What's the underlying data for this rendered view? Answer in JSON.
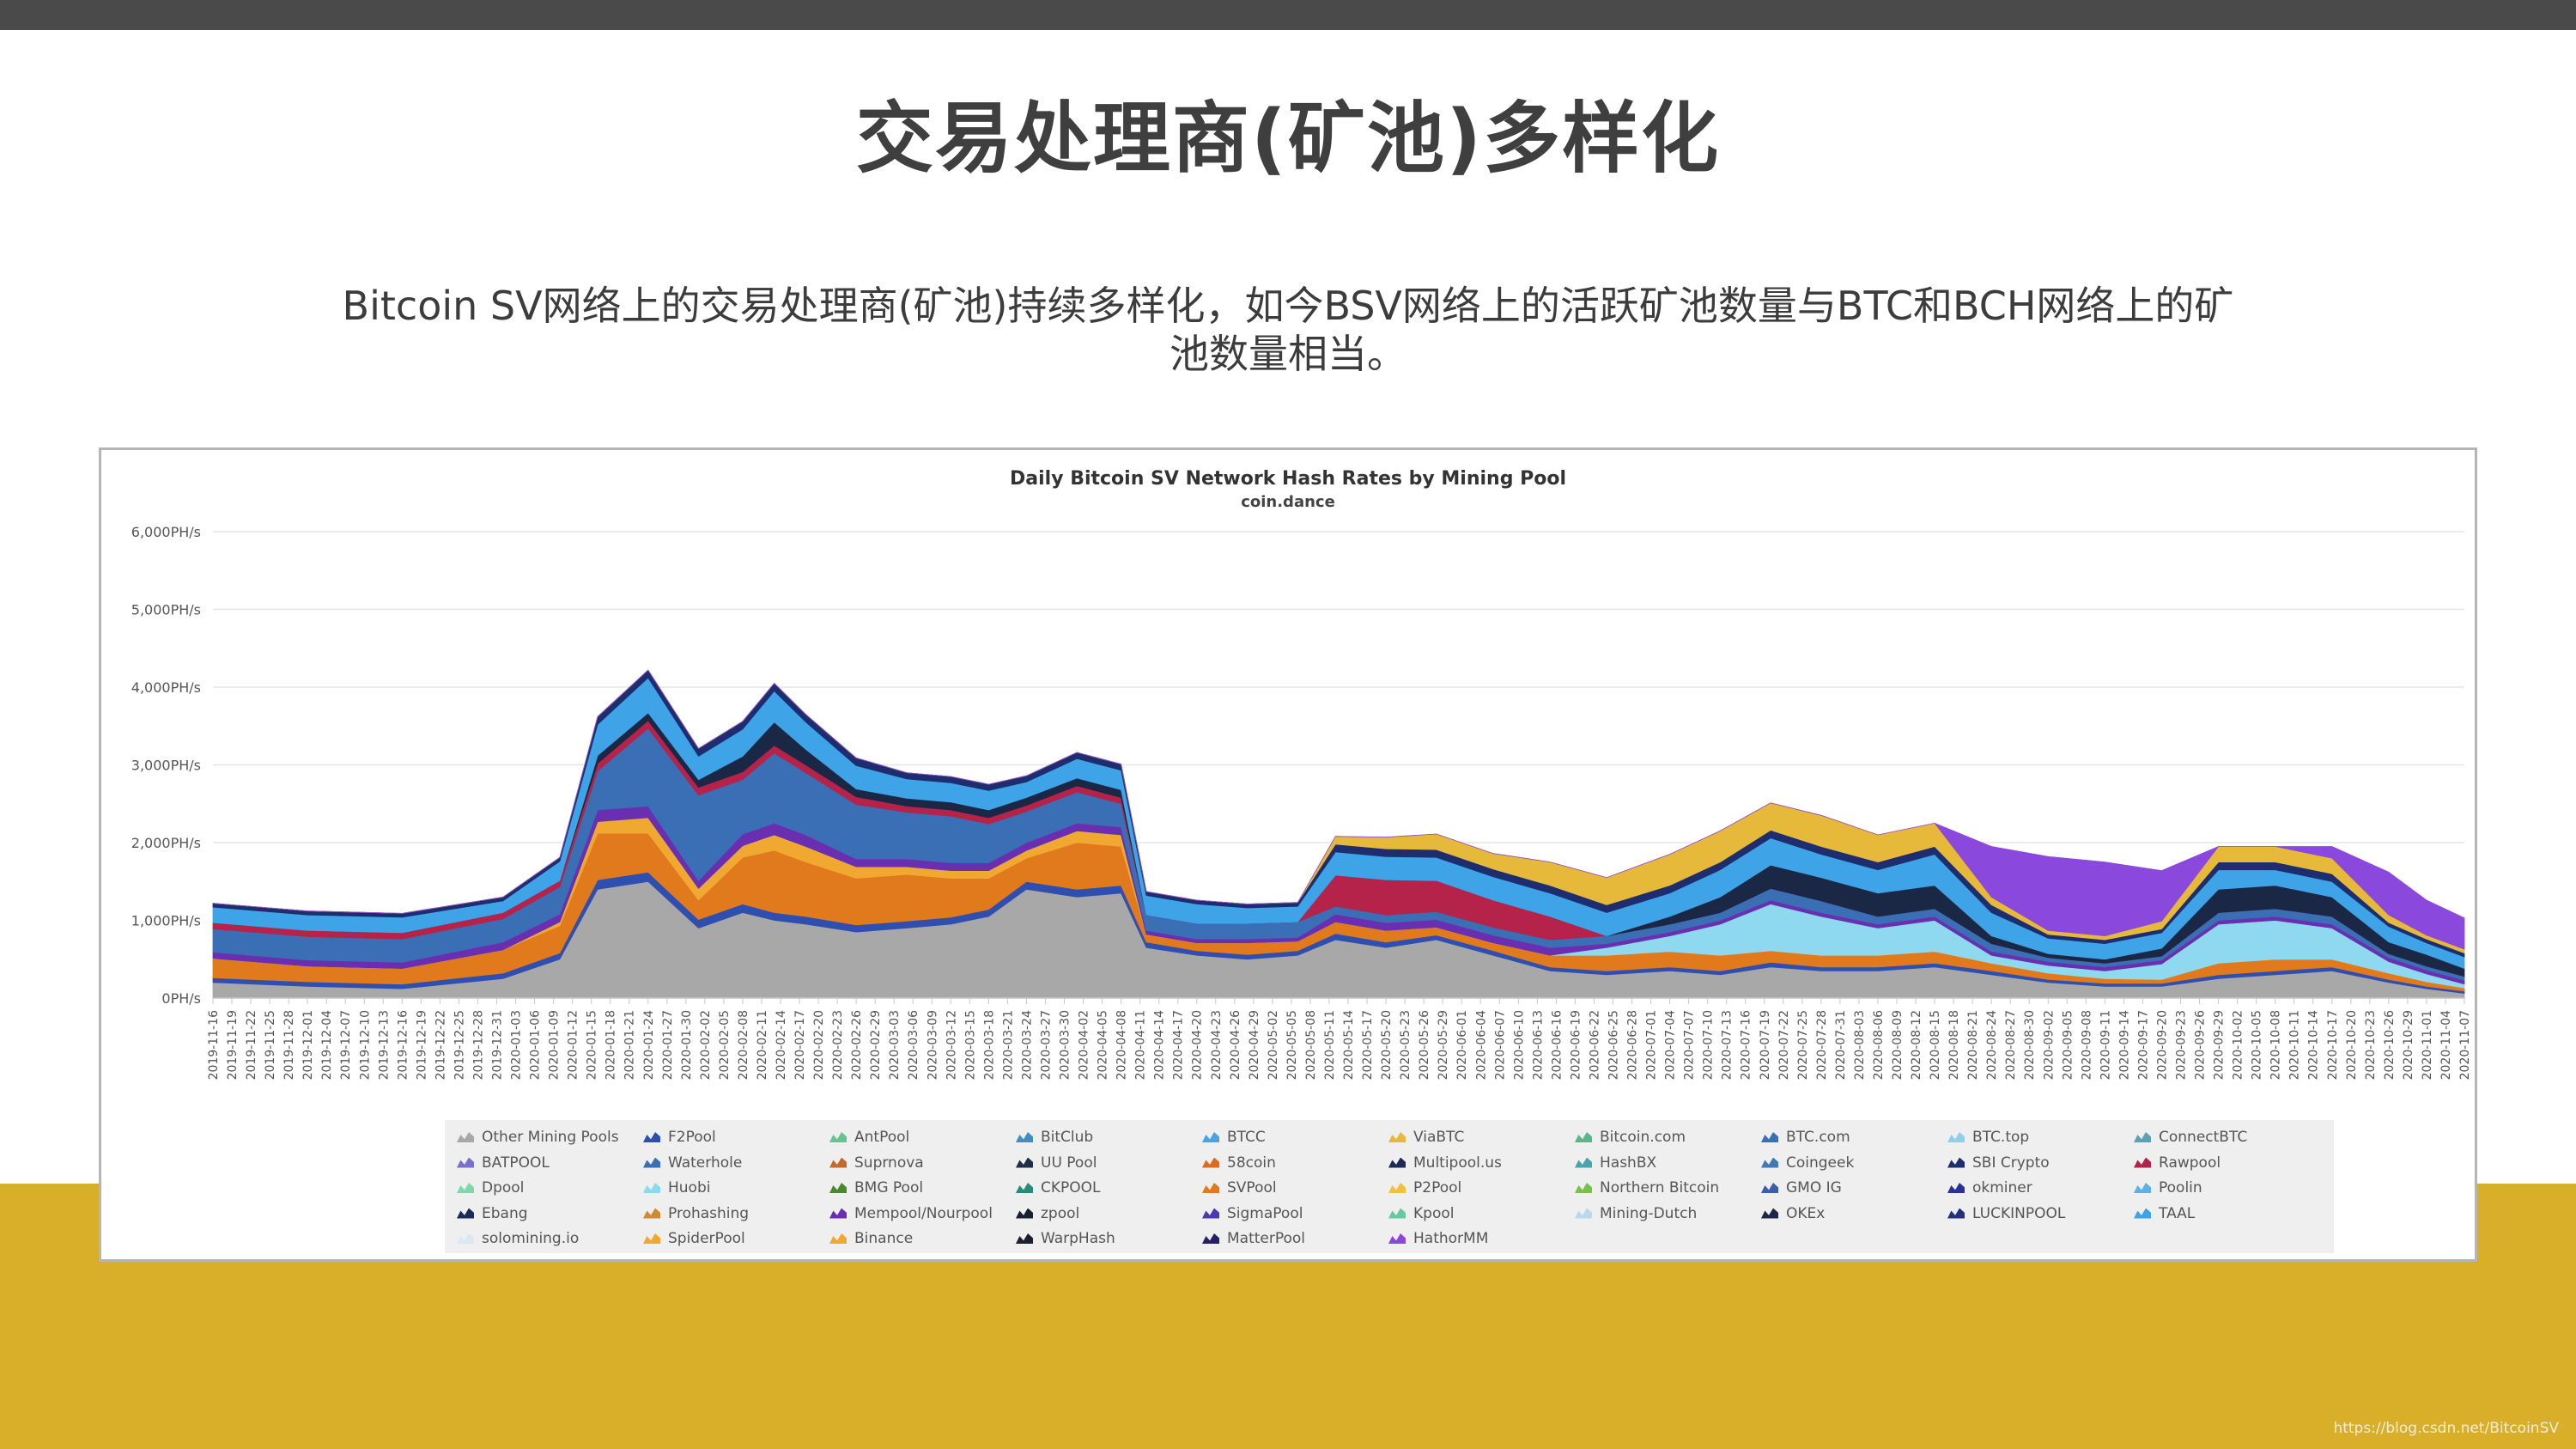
{
  "slide": {
    "title": "交易处理商(矿池)多样化",
    "description": "Bitcoin SV网络上的交易处理商(矿池)持续多样化，如今BSV网络上的活跃矿池数量与BTC和BCH网络上的矿池数量相当。",
    "watermark": "https://blog.csdn.net/BitcoinSV"
  },
  "colors": {
    "top_bar": "#4a4a4a",
    "bottom_band": "#d9af2a"
  },
  "chart_data": {
    "type": "area",
    "stacked": true,
    "title": "Daily Bitcoin SV Network Hash Rates by Mining Pool",
    "subtitle": "coin.dance",
    "y_unit": "PH/s",
    "ylim": [
      0,
      6000
    ],
    "y_ticks": [
      "0PH/s",
      "1,000PH/s",
      "2,000PH/s",
      "3,000PH/s",
      "4,000PH/s",
      "5,000PH/s",
      "6,000PH/s"
    ],
    "x_range": [
      "2019-11-16",
      "2020-11-07"
    ],
    "x_tick_labels": [
      "2019-11-16",
      "2019-11-19",
      "2019-11-22",
      "2019-11-25",
      "2019-11-28",
      "2019-12-01",
      "2019-12-04",
      "2019-12-07",
      "2019-12-10",
      "2019-12-13",
      "2019-12-16",
      "2019-12-19",
      "2019-12-22",
      "2019-12-25",
      "2019-12-28",
      "2019-12-31",
      "2020-01-03",
      "2020-01-06",
      "2020-01-09",
      "2020-01-12",
      "2020-01-15",
      "2020-01-18",
      "2020-01-21",
      "2020-01-24",
      "2020-01-27",
      "2020-01-30",
      "2020-02-02",
      "2020-02-05",
      "2020-02-08",
      "2020-02-11",
      "2020-02-14",
      "2020-02-17",
      "2020-02-20",
      "2020-02-23",
      "2020-02-26",
      "2020-02-29",
      "2020-03-03",
      "2020-03-06",
      "2020-03-09",
      "2020-03-12",
      "2020-03-15",
      "2020-03-18",
      "2020-03-21",
      "2020-03-24",
      "2020-03-27",
      "2020-03-30",
      "2020-04-02",
      "2020-04-05",
      "2020-04-08",
      "2020-04-11",
      "2020-04-14",
      "2020-04-17",
      "2020-04-20",
      "2020-04-23",
      "2020-04-26",
      "2020-04-29",
      "2020-05-02",
      "2020-05-05",
      "2020-05-08",
      "2020-05-11",
      "2020-05-14",
      "2020-05-17",
      "2020-05-20",
      "2020-05-23",
      "2020-05-26",
      "2020-05-29",
      "2020-06-01",
      "2020-06-04",
      "2020-06-07",
      "2020-06-10",
      "2020-06-13",
      "2020-06-16",
      "2020-06-19",
      "2020-06-22",
      "2020-06-25",
      "2020-06-28",
      "2020-07-01",
      "2020-07-04",
      "2020-07-07",
      "2020-07-10",
      "2020-07-13",
      "2020-07-16",
      "2020-07-19",
      "2020-07-22",
      "2020-07-25",
      "2020-07-28",
      "2020-07-31",
      "2020-08-03",
      "2020-08-06",
      "2020-08-09",
      "2020-08-12",
      "2020-08-15",
      "2020-08-18",
      "2020-08-21",
      "2020-08-24",
      "2020-08-27",
      "2020-08-30",
      "2020-09-02",
      "2020-09-05",
      "2020-09-08",
      "2020-09-11",
      "2020-09-14",
      "2020-09-17",
      "2020-09-20",
      "2020-09-23",
      "2020-09-26",
      "2020-09-29",
      "2020-10-02",
      "2020-10-05",
      "2020-10-08",
      "2020-10-11",
      "2020-10-14",
      "2020-10-17",
      "2020-10-20",
      "2020-10-23",
      "2020-10-26",
      "2020-10-29",
      "2020-11-01",
      "2020-11-04",
      "2020-11-07"
    ],
    "x": [
      "2019-11-16",
      "2019-12-01",
      "2019-12-16",
      "2020-01-01",
      "2020-01-10",
      "2020-01-16",
      "2020-01-24",
      "2020-02-01",
      "2020-02-08",
      "2020-02-13",
      "2020-02-18",
      "2020-02-26",
      "2020-03-05",
      "2020-03-12",
      "2020-03-18",
      "2020-03-24",
      "2020-04-01",
      "2020-04-08",
      "2020-04-12",
      "2020-04-20",
      "2020-04-28",
      "2020-05-06",
      "2020-05-12",
      "2020-05-20",
      "2020-05-28",
      "2020-06-06",
      "2020-06-15",
      "2020-06-24",
      "2020-07-04",
      "2020-07-12",
      "2020-07-20",
      "2020-07-28",
      "2020-08-06",
      "2020-08-15",
      "2020-08-24",
      "2020-09-02",
      "2020-09-11",
      "2020-09-20",
      "2020-09-29",
      "2020-10-08",
      "2020-10-17",
      "2020-10-26",
      "2020-11-01",
      "2020-11-07"
    ],
    "series": [
      {
        "name": "Other Mining Pools",
        "color": "#a8a8a8",
        "values": [
          200,
          150,
          120,
          250,
          500,
          1400,
          1500,
          900,
          1100,
          1000,
          950,
          850,
          900,
          950,
          1050,
          1400,
          1300,
          1350,
          650,
          550,
          500,
          550,
          750,
          650,
          750,
          550,
          350,
          300,
          350,
          300,
          400,
          350,
          350,
          400,
          300,
          200,
          150,
          150,
          250,
          300,
          350,
          200,
          120,
          60
        ]
      },
      {
        "name": "F2Pool",
        "color": "#2e4fb0",
        "values": [
          60,
          60,
          60,
          70,
          80,
          120,
          120,
          110,
          110,
          100,
          100,
          90,
          90,
          90,
          90,
          100,
          100,
          100,
          70,
          60,
          60,
          60,
          80,
          70,
          60,
          60,
          50,
          50,
          50,
          50,
          60,
          50,
          50,
          50,
          50,
          40,
          40,
          40,
          50,
          50,
          50,
          40,
          30,
          30
        ]
      },
      {
        "name": "SVPool",
        "color": "#e07a1c",
        "values": [
          250,
          200,
          200,
          300,
          350,
          600,
          500,
          250,
          600,
          800,
          700,
          600,
          600,
          500,
          400,
          300,
          600,
          500,
          100,
          100,
          150,
          120,
          150,
          150,
          100,
          100,
          150,
          200,
          200,
          200,
          150,
          150,
          150,
          150,
          100,
          80,
          60,
          50,
          150,
          150,
          100,
          80,
          60,
          40
        ]
      },
      {
        "name": "Binance",
        "color": "#f0a830",
        "values": [
          0,
          0,
          0,
          0,
          50,
          150,
          200,
          150,
          150,
          200,
          200,
          150,
          100,
          100,
          100,
          100,
          150,
          150,
          0,
          0,
          0,
          0,
          0,
          0,
          0,
          0,
          0,
          0,
          0,
          0,
          0,
          0,
          0,
          0,
          0,
          0,
          0,
          0,
          0,
          0,
          0,
          0,
          0,
          0
        ]
      },
      {
        "name": "Huobi",
        "color": "#8ed8f0",
        "values": [
          0,
          0,
          0,
          0,
          0,
          0,
          0,
          0,
          0,
          0,
          0,
          0,
          0,
          0,
          0,
          0,
          0,
          0,
          0,
          0,
          0,
          0,
          0,
          0,
          0,
          0,
          0,
          100,
          200,
          400,
          600,
          500,
          350,
          400,
          100,
          100,
          100,
          200,
          500,
          500,
          400,
          150,
          100,
          50
        ]
      },
      {
        "name": "Mempool/Nourpool",
        "color": "#6a2fb0",
        "values": [
          80,
          80,
          80,
          100,
          100,
          150,
          150,
          100,
          150,
          150,
          150,
          100,
          100,
          100,
          100,
          100,
          100,
          100,
          50,
          50,
          50,
          50,
          100,
          100,
          100,
          100,
          100,
          50,
          50,
          50,
          50,
          50,
          50,
          50,
          50,
          50,
          50,
          50,
          50,
          50,
          50,
          50,
          50,
          50
        ]
      },
      {
        "name": "BTC.com",
        "color": "#3b6fb5",
        "values": [
          300,
          300,
          300,
          300,
          350,
          500,
          1000,
          1100,
          700,
          900,
          800,
          700,
          600,
          600,
          500,
          400,
          400,
          300,
          200,
          200,
          200,
          200,
          100,
          100,
          100,
          100,
          100,
          100,
          100,
          100,
          150,
          150,
          100,
          100,
          100,
          50,
          50,
          50,
          100,
          100,
          100,
          50,
          50,
          50
        ]
      },
      {
        "name": "Rawpool",
        "color": "#b5234a",
        "values": [
          80,
          80,
          80,
          80,
          80,
          100,
          100,
          100,
          100,
          100,
          100,
          100,
          80,
          80,
          80,
          80,
          80,
          80,
          0,
          0,
          0,
          0,
          400,
          450,
          400,
          350,
          300,
          0,
          0,
          0,
          0,
          0,
          0,
          0,
          0,
          0,
          0,
          0,
          0,
          0,
          0,
          0,
          0,
          0
        ]
      },
      {
        "name": "OKEx",
        "color": "#1a2845",
        "values": [
          0,
          0,
          0,
          0,
          0,
          100,
          100,
          100,
          200,
          300,
          200,
          100,
          100,
          100,
          100,
          100,
          100,
          100,
          0,
          0,
          0,
          0,
          0,
          0,
          0,
          0,
          0,
          0,
          100,
          200,
          300,
          300,
          300,
          300,
          100,
          50,
          50,
          100,
          300,
          300,
          250,
          150,
          150,
          100
        ]
      },
      {
        "name": "TAAL",
        "color": "#3fa3e8",
        "values": [
          200,
          200,
          200,
          150,
          250,
          400,
          450,
          300,
          350,
          400,
          350,
          300,
          250,
          250,
          250,
          200,
          250,
          250,
          250,
          250,
          200,
          200,
          300,
          300,
          300,
          300,
          300,
          300,
          300,
          350,
          350,
          300,
          300,
          400,
          300,
          200,
          200,
          200,
          250,
          200,
          200,
          200,
          150,
          150
        ]
      },
      {
        "name": "SBI Crypto",
        "color": "#1e2d6e",
        "values": [
          50,
          50,
          50,
          50,
          50,
          100,
          100,
          100,
          100,
          100,
          100,
          100,
          80,
          80,
          80,
          80,
          80,
          80,
          50,
          50,
          50,
          50,
          100,
          100,
          100,
          100,
          100,
          100,
          100,
          100,
          100,
          100,
          100,
          100,
          100,
          50,
          50,
          50,
          100,
          100,
          100,
          50,
          50,
          50
        ]
      },
      {
        "name": "ViaBTC",
        "color": "#e7b93a",
        "values": [
          0,
          0,
          0,
          0,
          0,
          0,
          0,
          0,
          0,
          0,
          0,
          0,
          0,
          0,
          0,
          0,
          0,
          0,
          0,
          0,
          0,
          0,
          100,
          150,
          200,
          200,
          300,
          350,
          400,
          400,
          350,
          400,
          350,
          300,
          100,
          50,
          50,
          100,
          200,
          200,
          200,
          100,
          50,
          50
        ]
      },
      {
        "name": "HathorMM",
        "color": "#8a48dc",
        "values": [
          0,
          0,
          0,
          0,
          0,
          0,
          0,
          0,
          0,
          0,
          0,
          0,
          0,
          0,
          0,
          0,
          0,
          0,
          0,
          0,
          0,
          0,
          0,
          0,
          0,
          0,
          0,
          0,
          0,
          0,
          0,
          0,
          0,
          0,
          650,
          950,
          950,
          650,
          0,
          0,
          150,
          550,
          450,
          400
        ]
      }
    ],
    "legend": {
      "position": "bottom",
      "entries": [
        {
          "name": "Other Mining Pools",
          "color": "#a8a8a8"
        },
        {
          "name": "F2Pool",
          "color": "#2e4fb0"
        },
        {
          "name": "AntPool",
          "color": "#6ac38f"
        },
        {
          "name": "BitClub",
          "color": "#3f8fc2"
        },
        {
          "name": "BTCC",
          "color": "#4aa3e0"
        },
        {
          "name": "ViaBTC",
          "color": "#e7b93a"
        },
        {
          "name": "Bitcoin.com",
          "color": "#5ab58a"
        },
        {
          "name": "BTC.com",
          "color": "#3b6fb5"
        },
        {
          "name": "BTC.top",
          "color": "#8ed0ea"
        },
        {
          "name": "ConnectBTC",
          "color": "#5fa0b5"
        },
        {
          "name": "BATPOOL",
          "color": "#7a6fd0"
        },
        {
          "name": "Waterhole",
          "color": "#3b6fb5"
        },
        {
          "name": "Suprnova",
          "color": "#c56a2a"
        },
        {
          "name": "UU Pool",
          "color": "#1f2f4a"
        },
        {
          "name": "58coin",
          "color": "#e06a1c"
        },
        {
          "name": "Multipool.us",
          "color": "#1c2a55"
        },
        {
          "name": "HashBX",
          "color": "#4aa3b0"
        },
        {
          "name": "Coingeek",
          "color": "#3f7ab5"
        },
        {
          "name": "SBI Crypto",
          "color": "#1e2d6e"
        },
        {
          "name": "Rawpool",
          "color": "#b5234a"
        },
        {
          "name": "Dpool",
          "color": "#7fd8a8"
        },
        {
          "name": "Huobi",
          "color": "#8ed8f0"
        },
        {
          "name": "BMG Pool",
          "color": "#4a8a2a"
        },
        {
          "name": "CKPOOL",
          "color": "#2a8a7a"
        },
        {
          "name": "SVPool",
          "color": "#e07a1c"
        },
        {
          "name": "P2Pool",
          "color": "#f0c040"
        },
        {
          "name": "Northern Bitcoin",
          "color": "#7ac050"
        },
        {
          "name": "GMO IG",
          "color": "#3a5fa8"
        },
        {
          "name": "okminer",
          "color": "#2a2f9a"
        },
        {
          "name": "Poolin",
          "color": "#5fb0e8"
        },
        {
          "name": "Ebang",
          "color": "#1a2a5a"
        },
        {
          "name": "Prohashing",
          "color": "#d08a30"
        },
        {
          "name": "Mempool/Nourpool",
          "color": "#6a2fb0"
        },
        {
          "name": "zpool",
          "color": "#1a2030"
        },
        {
          "name": "SigmaPool",
          "color": "#4a3ab0"
        },
        {
          "name": "Kpool",
          "color": "#6ac8a0"
        },
        {
          "name": "Mining-Dutch",
          "color": "#b8d8f0"
        },
        {
          "name": "OKEx",
          "color": "#1a2845"
        },
        {
          "name": "LUCKINPOOL",
          "color": "#23307a"
        },
        {
          "name": "TAAL",
          "color": "#3fa3e8"
        },
        {
          "name": "solomining.io",
          "color": "#d8e8f5"
        },
        {
          "name": "SpiderPool",
          "color": "#f0a830"
        },
        {
          "name": "Binance",
          "color": "#f0a830"
        },
        {
          "name": "WarpHash",
          "color": "#1a2030"
        },
        {
          "name": "MatterPool",
          "color": "#23206a"
        },
        {
          "name": "HathorMM",
          "color": "#8a48dc"
        }
      ]
    }
  }
}
